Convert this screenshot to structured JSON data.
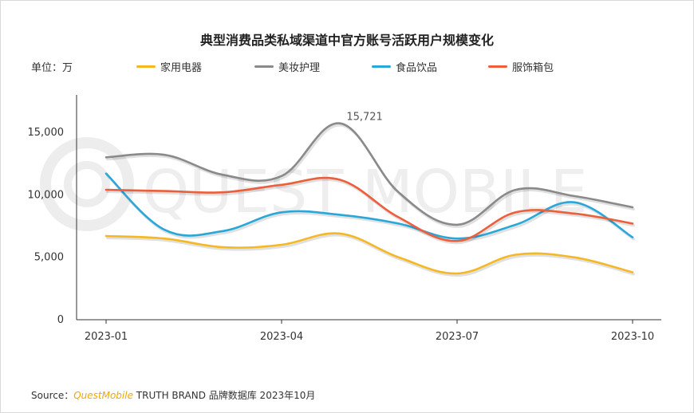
{
  "chart_data": {
    "type": "line",
    "title": "典型消费品类私域渠道中官方账号活跃用户规模变化",
    "unit_label": "单位：万",
    "categories": [
      "2023-01",
      "2023-02",
      "2023-03",
      "2023-04",
      "2023-05",
      "2023-06",
      "2023-07",
      "2023-08",
      "2023-09",
      "2023-10"
    ],
    "x_tick_labels": [
      "2023-01",
      "2023-04",
      "2023-07",
      "2023-10"
    ],
    "y_ticks": [
      "0",
      "5,000",
      "10,000",
      "15,000"
    ],
    "ylim": [
      0,
      18000
    ],
    "grid": false,
    "legend_position": "top",
    "series": [
      {
        "name": "家用电器",
        "color": "#f5b823",
        "values": [
          6700,
          6500,
          5800,
          6000,
          6900,
          5000,
          3700,
          5200,
          5000,
          3800
        ]
      },
      {
        "name": "美妆护理",
        "color": "#8a8a8a",
        "values": [
          13000,
          13200,
          11600,
          11500,
          15721,
          10200,
          7600,
          10400,
          9900,
          9000
        ]
      },
      {
        "name": "食品饮品",
        "color": "#2aa7d9",
        "values": [
          11700,
          7200,
          7100,
          8600,
          8400,
          7700,
          6500,
          7600,
          9400,
          6600
        ]
      },
      {
        "name": "服饰箱包",
        "color": "#ec5f3d",
        "values": [
          10400,
          10300,
          10200,
          10800,
          11200,
          8200,
          6300,
          8600,
          8500,
          7700
        ]
      }
    ],
    "annotations": [
      {
        "series": "美妆护理",
        "category": "2023-05",
        "text": "15,721"
      }
    ],
    "watermark": "QUEST MOBILE"
  },
  "source": {
    "prefix": "Source：",
    "brand": "QuestMobile",
    "rest": " TRUTH BRAND 品牌数据库 2023年10月"
  }
}
